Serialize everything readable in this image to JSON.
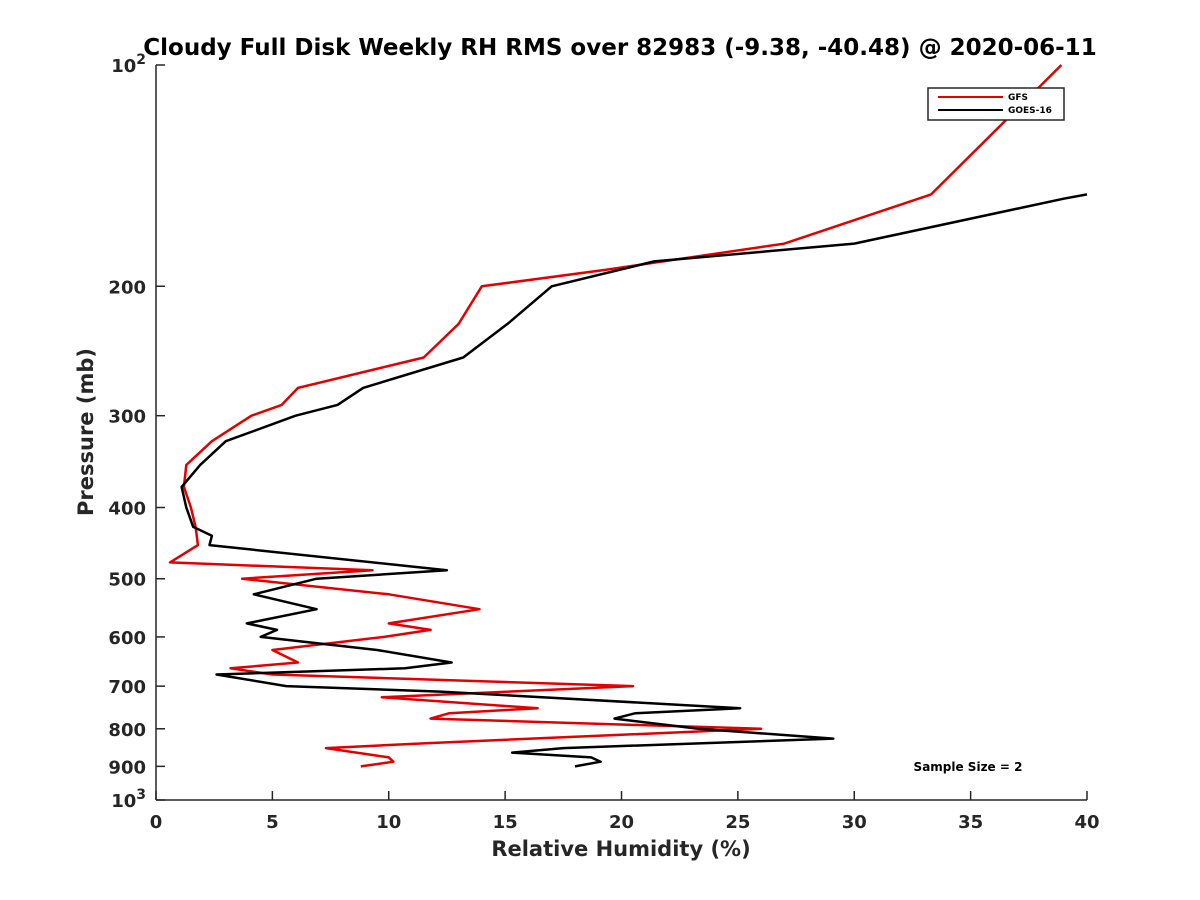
{
  "chart_data": {
    "type": "line",
    "title": "Cloudy Full Disk Weekly RH RMS over 82983 (-9.38, -40.48) @ 2020-06-11",
    "xlabel": "Relative Humidity (%)",
    "ylabel": "Pressure (mb)",
    "xlim": [
      0,
      40
    ],
    "ylim": [
      100,
      1000
    ],
    "y_scale": "log",
    "y_reversed": true,
    "grid": false,
    "legend_position": "top-right",
    "x_ticks": [
      0,
      5,
      10,
      15,
      20,
      25,
      30,
      35,
      40
    ],
    "x_tick_labels": [
      "0",
      "5",
      "10",
      "15",
      "20",
      "25",
      "30",
      "35",
      "40"
    ],
    "y_ticks": [
      100,
      200,
      300,
      400,
      500,
      600,
      700,
      800,
      900,
      1000
    ],
    "y_tick_labels": [
      {
        "base": "10",
        "exp": "2"
      },
      {
        "base": "200",
        "exp": ""
      },
      {
        "base": "300",
        "exp": ""
      },
      {
        "base": "400",
        "exp": ""
      },
      {
        "base": "500",
        "exp": ""
      },
      {
        "base": "600",
        "exp": ""
      },
      {
        "base": "700",
        "exp": ""
      },
      {
        "base": "800",
        "exp": ""
      },
      {
        "base": "900",
        "exp": ""
      },
      {
        "base": "10",
        "exp": "3"
      }
    ],
    "annotation": "Sample Size = 2",
    "series": [
      {
        "name": "GFS",
        "color": "#e50000",
        "points": [
          [
            38.9,
            100
          ],
          [
            33.3,
            150
          ],
          [
            27.0,
            175
          ],
          [
            19.3,
            190
          ],
          [
            14.0,
            200
          ],
          [
            13.0,
            225
          ],
          [
            11.5,
            250
          ],
          [
            6.1,
            275
          ],
          [
            5.4,
            290
          ],
          [
            4.1,
            300
          ],
          [
            2.4,
            325
          ],
          [
            1.3,
            350
          ],
          [
            1.2,
            375
          ],
          [
            1.5,
            400
          ],
          [
            1.7,
            425
          ],
          [
            1.8,
            450
          ],
          [
            0.6,
            475
          ],
          [
            9.3,
            487
          ],
          [
            3.7,
            500
          ],
          [
            10.0,
            525
          ],
          [
            13.9,
            550
          ],
          [
            10.0,
            575
          ],
          [
            11.8,
            587
          ],
          [
            9.8,
            600
          ],
          [
            5.0,
            625
          ],
          [
            6.1,
            650
          ],
          [
            3.2,
            662
          ],
          [
            5.0,
            675
          ],
          [
            20.5,
            700
          ],
          [
            9.7,
            725
          ],
          [
            16.4,
            750
          ],
          [
            12.6,
            762
          ],
          [
            11.8,
            775
          ],
          [
            26.0,
            800
          ],
          [
            11.6,
            837
          ],
          [
            7.3,
            850
          ],
          [
            10.0,
            875
          ],
          [
            10.2,
            887
          ],
          [
            8.8,
            900
          ]
        ]
      },
      {
        "name": "GOES-16",
        "color": "#000000",
        "points": [
          [
            40.0,
            150
          ],
          [
            39.0,
            152
          ],
          [
            30.0,
            175
          ],
          [
            21.4,
            185
          ],
          [
            17.0,
            200
          ],
          [
            15.1,
            225
          ],
          [
            13.2,
            250
          ],
          [
            8.9,
            275
          ],
          [
            7.8,
            290
          ],
          [
            6.0,
            300
          ],
          [
            3.0,
            325
          ],
          [
            1.9,
            350
          ],
          [
            1.1,
            375
          ],
          [
            1.3,
            400
          ],
          [
            1.6,
            425
          ],
          [
            2.4,
            437
          ],
          [
            2.3,
            450
          ],
          [
            12.5,
            487
          ],
          [
            6.9,
            500
          ],
          [
            4.2,
            525
          ],
          [
            6.9,
            550
          ],
          [
            3.9,
            575
          ],
          [
            5.2,
            587
          ],
          [
            4.5,
            600
          ],
          [
            9.5,
            625
          ],
          [
            12.7,
            650
          ],
          [
            10.7,
            662
          ],
          [
            2.6,
            675
          ],
          [
            5.6,
            700
          ],
          [
            12.2,
            712
          ],
          [
            25.1,
            750
          ],
          [
            20.6,
            762
          ],
          [
            19.7,
            775
          ],
          [
            23.3,
            800
          ],
          [
            29.1,
            825
          ],
          [
            17.5,
            850
          ],
          [
            15.3,
            862
          ],
          [
            18.7,
            875
          ],
          [
            19.1,
            887
          ],
          [
            18.0,
            900
          ]
        ]
      }
    ]
  }
}
